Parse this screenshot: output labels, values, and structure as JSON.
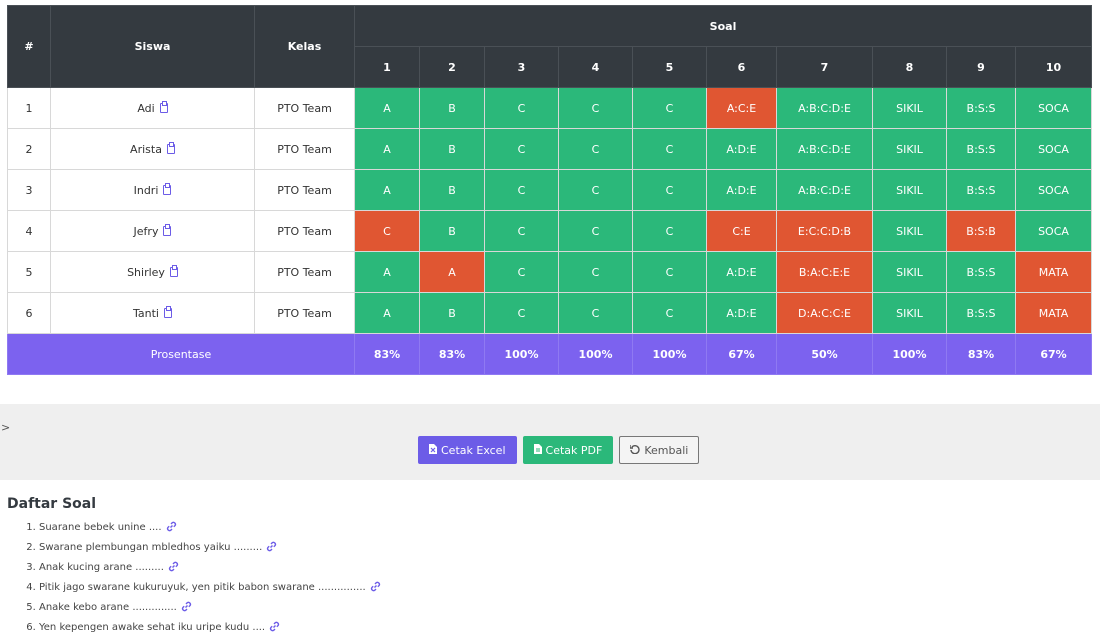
{
  "table": {
    "headers": {
      "no": "#",
      "siswa": "Siswa",
      "kelas": "Kelas",
      "soal": "Soal"
    },
    "questions": [
      "1",
      "2",
      "3",
      "4",
      "5",
      "6",
      "7",
      "8",
      "9",
      "10"
    ],
    "rows": [
      {
        "no": "1",
        "name": "Adi",
        "kelas": "PTO Team",
        "answers": [
          [
            "A",
            "ok"
          ],
          [
            "B",
            "ok"
          ],
          [
            "C",
            "ok"
          ],
          [
            "C",
            "ok"
          ],
          [
            "C",
            "ok"
          ],
          [
            "A:C:E",
            "bad"
          ],
          [
            "A:B:C:D:E",
            "ok"
          ],
          [
            "SIKIL",
            "ok"
          ],
          [
            "B:S:S",
            "ok"
          ],
          [
            "SOCA",
            "ok"
          ]
        ]
      },
      {
        "no": "2",
        "name": "Arista",
        "kelas": "PTO Team",
        "answers": [
          [
            "A",
            "ok"
          ],
          [
            "B",
            "ok"
          ],
          [
            "C",
            "ok"
          ],
          [
            "C",
            "ok"
          ],
          [
            "C",
            "ok"
          ],
          [
            "A:D:E",
            "ok"
          ],
          [
            "A:B:C:D:E",
            "ok"
          ],
          [
            "SIKIL",
            "ok"
          ],
          [
            "B:S:S",
            "ok"
          ],
          [
            "SOCA",
            "ok"
          ]
        ]
      },
      {
        "no": "3",
        "name": "Indri",
        "kelas": "PTO Team",
        "answers": [
          [
            "A",
            "ok"
          ],
          [
            "B",
            "ok"
          ],
          [
            "C",
            "ok"
          ],
          [
            "C",
            "ok"
          ],
          [
            "C",
            "ok"
          ],
          [
            "A:D:E",
            "ok"
          ],
          [
            "A:B:C:D:E",
            "ok"
          ],
          [
            "SIKIL",
            "ok"
          ],
          [
            "B:S:S",
            "ok"
          ],
          [
            "SOCA",
            "ok"
          ]
        ]
      },
      {
        "no": "4",
        "name": "Jefry",
        "kelas": "PTO Team",
        "answers": [
          [
            "C",
            "bad"
          ],
          [
            "B",
            "ok"
          ],
          [
            "C",
            "ok"
          ],
          [
            "C",
            "ok"
          ],
          [
            "C",
            "ok"
          ],
          [
            "C:E",
            "bad"
          ],
          [
            "E:C:C:D:B",
            "bad"
          ],
          [
            "SIKIL",
            "ok"
          ],
          [
            "B:S:B",
            "bad"
          ],
          [
            "SOCA",
            "ok"
          ]
        ]
      },
      {
        "no": "5",
        "name": "Shirley",
        "kelas": "PTO Team",
        "answers": [
          [
            "A",
            "ok"
          ],
          [
            "A",
            "bad"
          ],
          [
            "C",
            "ok"
          ],
          [
            "C",
            "ok"
          ],
          [
            "C",
            "ok"
          ],
          [
            "A:D:E",
            "ok"
          ],
          [
            "B:A:C:E:E",
            "bad"
          ],
          [
            "SIKIL",
            "ok"
          ],
          [
            "B:S:S",
            "ok"
          ],
          [
            "MATA",
            "bad"
          ]
        ]
      },
      {
        "no": "6",
        "name": "Tanti",
        "kelas": "PTO Team",
        "answers": [
          [
            "A",
            "ok"
          ],
          [
            "B",
            "ok"
          ],
          [
            "C",
            "ok"
          ],
          [
            "C",
            "ok"
          ],
          [
            "C",
            "ok"
          ],
          [
            "A:D:E",
            "ok"
          ],
          [
            "D:A:C:C:E",
            "bad"
          ],
          [
            "SIKIL",
            "ok"
          ],
          [
            "B:S:S",
            "ok"
          ],
          [
            "MATA",
            "bad"
          ]
        ]
      }
    ],
    "footer": {
      "label": "Prosentase",
      "values": [
        "83%",
        "83%",
        "100%",
        "100%",
        "100%",
        "67%",
        "50%",
        "100%",
        "83%",
        "67%"
      ]
    }
  },
  "colors": {
    "ok": "#2bb87a",
    "bad": "#e05632",
    "header": "#343a40",
    "footer": "#7c62ef"
  },
  "toolbar": {
    "caret": ">",
    "excel_label": "Cetak Excel",
    "pdf_label": "Cetak PDF",
    "back_label": "Kembali"
  },
  "daftar": {
    "title": "Daftar Soal",
    "items": [
      "Suarane bebek unine ....",
      "Swarane plembungan mbledhos yaiku .........",
      "Anak kucing arane .........",
      "Pitik jago swarane kukuruyuk, yen pitik babon swarane ...............",
      "Anake kebo arane ..............",
      "Yen kepengen awake sehat iku uripe kudu ...."
    ]
  }
}
